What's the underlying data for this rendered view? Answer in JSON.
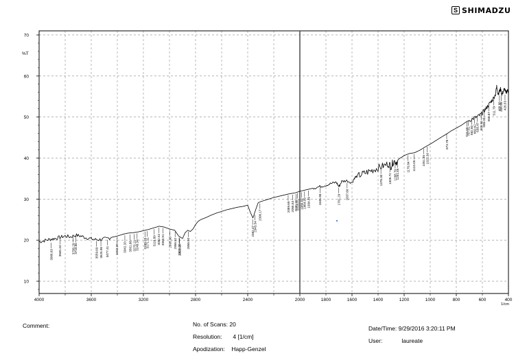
{
  "brand": {
    "name": "SHIMADZU",
    "mark": "S"
  },
  "chart_data": {
    "type": "line",
    "xunit": "1/cm",
    "ylabel": "%T",
    "xlim": [
      4000,
      400
    ],
    "ylim": [
      7,
      71
    ],
    "xticks": [
      4000,
      3600,
      3200,
      2800,
      2400,
      2000,
      1600,
      1200,
      800,
      400
    ],
    "xtick_labels": [
      "4000",
      "3600",
      "3200",
      "2800",
      "2400",
      "2000",
      "1600",
      "1200",
      "800",
      "400"
    ],
    "minor_xticks": [
      3800,
      3400,
      3000,
      2600,
      2200,
      1800,
      1400,
      1000,
      600
    ],
    "minor_xtick_labels": [
      "",
      "",
      "",
      "",
      "",
      "1800",
      "1400",
      "1000",
      "600"
    ],
    "yticks": [
      10,
      20,
      30,
      40,
      50,
      60,
      70
    ],
    "ytick_labels": [
      "10",
      "20",
      "30",
      "40",
      "50",
      "60",
      "70"
    ],
    "grid": true,
    "marker_line_x": 2000,
    "series": [
      {
        "x": [
          4000,
          3960,
          3920,
          3880,
          3840,
          3800,
          3760,
          3720,
          3680,
          3640,
          3600,
          3560,
          3520,
          3480,
          3440,
          3400,
          3360,
          3320,
          3280,
          3240,
          3200,
          3160,
          3120,
          3080,
          3040,
          3000,
          2960,
          2930,
          2900,
          2880,
          2860,
          2840,
          2820,
          2800,
          2780,
          2760,
          2720,
          2680,
          2640,
          2600,
          2560,
          2520,
          2480,
          2440,
          2400,
          2380,
          2360,
          2340,
          2320,
          2300,
          2280,
          2240,
          2200,
          2160,
          2120,
          2080,
          2040,
          2000,
          1960,
          1920,
          1880,
          1840,
          1800,
          1760,
          1720,
          1700,
          1680,
          1640,
          1600,
          1580,
          1560,
          1520,
          1480,
          1440,
          1400,
          1360,
          1320,
          1300,
          1280,
          1260,
          1240,
          1200,
          1160,
          1120,
          1080,
          1040,
          1000,
          960,
          920,
          873,
          840,
          800,
          760,
          720,
          680,
          650,
          620,
          600,
          580,
          560,
          540,
          520,
          500,
          490,
          480,
          470,
          460,
          450,
          440,
          430,
          420,
          410,
          400
        ],
        "y": [
          19.6,
          19.9,
          20.2,
          20.4,
          20.7,
          21.0,
          20.8,
          21.2,
          21.0,
          20.6,
          20.3,
          20.1,
          20.2,
          20.4,
          20.7,
          21.0,
          21.4,
          21.7,
          21.8,
          22.0,
          22.3,
          22.6,
          23.0,
          23.4,
          23.2,
          22.7,
          22.4,
          21.0,
          20.4,
          21.8,
          22.4,
          22.1,
          22.7,
          23.8,
          24.6,
          25.0,
          25.5,
          26.1,
          26.6,
          27.0,
          27.4,
          27.7,
          28.0,
          28.2,
          28.5,
          26.8,
          25.4,
          27.3,
          29.1,
          29.4,
          29.6,
          30.0,
          30.4,
          30.7,
          31.0,
          31.3,
          31.5,
          31.9,
          32.2,
          32.5,
          32.8,
          33.1,
          33.4,
          33.8,
          34.1,
          33.0,
          34.3,
          34.5,
          34.0,
          35.2,
          35.6,
          36.1,
          36.6,
          37.1,
          37.6,
          38.1,
          38.6,
          38.0,
          39.3,
          39.0,
          39.8,
          40.6,
          41.1,
          41.3,
          41.9,
          42.7,
          43.4,
          44.2,
          45.0,
          45.9,
          46.6,
          47.3,
          48.0,
          48.9,
          49.5,
          49.9,
          50.4,
          51.0,
          51.8,
          52.6,
          53.5,
          54.3,
          55.5,
          57.5,
          55.6,
          56.2,
          56.8,
          55.4,
          56.3,
          56.9,
          55.8,
          56.5,
          56.2
        ]
      }
    ],
    "peak_labels": [
      {
        "x": 3906.63,
        "y": 19.7,
        "label": "3906.63"
      },
      {
        "x": 3840.44,
        "y": 20.6,
        "label": "3840.44"
      },
      {
        "x": 3738.29,
        "y": 21.1,
        "label": "3738.29"
      },
      {
        "x": 3718.8,
        "y": 21.2,
        "label": "3718.80"
      },
      {
        "x": 3559.69,
        "y": 20.1,
        "label": "3559.69"
      },
      {
        "x": 3525.98,
        "y": 20.2,
        "label": "3525.98"
      },
      {
        "x": 3477.41,
        "y": 20.4,
        "label": "3477.41"
      },
      {
        "x": 3403.09,
        "y": 21.0,
        "label": "3403.09"
      },
      {
        "x": 3342.33,
        "y": 21.5,
        "label": "3342.33"
      },
      {
        "x": 3301.88,
        "y": 21.7,
        "label": "3301.88"
      },
      {
        "x": 3270.11,
        "y": 21.8,
        "label": "3270.11"
      },
      {
        "x": 3248.34,
        "y": 22.0,
        "label": "3248.34"
      },
      {
        "x": 3188.25,
        "y": 22.4,
        "label": "3188.25"
      },
      {
        "x": 3171.11,
        "y": 22.5,
        "label": "3171.11"
      },
      {
        "x": 3116.89,
        "y": 23.0,
        "label": "3116.89"
      },
      {
        "x": 3082.52,
        "y": 23.4,
        "label": "3082.52"
      },
      {
        "x": 3050.91,
        "y": 23.3,
        "label": "3050.91"
      },
      {
        "x": 2995.9,
        "y": 22.7,
        "label": "2995.90"
      },
      {
        "x": 2956.92,
        "y": 22.4,
        "label": "2956.92"
      },
      {
        "x": 2926.06,
        "y": 21.0,
        "label": "2926.06"
      },
      {
        "x": 2922.18,
        "y": 20.8,
        "label": "2922.18"
      },
      {
        "x": 2856.5,
        "y": 22.4,
        "label": "2856.50"
      },
      {
        "x": 2362.47,
        "y": 25.4,
        "label": "2362.47"
      },
      {
        "x": 2343.54,
        "y": 26.5,
        "label": "2343.54"
      },
      {
        "x": 2306.17,
        "y": 29.3,
        "label": "2306.17"
      },
      {
        "x": 2089.69,
        "y": 31.3,
        "label": "2089.69"
      },
      {
        "x": 2056.53,
        "y": 31.4,
        "label": "2056.53"
      },
      {
        "x": 2030.3,
        "y": 31.6,
        "label": "2030.30"
      },
      {
        "x": 2018.01,
        "y": 31.8,
        "label": "2018.01"
      },
      {
        "x": 1986.69,
        "y": 32.0,
        "label": "1986.69"
      },
      {
        "x": 1964.09,
        "y": 32.2,
        "label": "1964.09"
      },
      {
        "x": 1934.09,
        "y": 32.4,
        "label": "1934.09"
      },
      {
        "x": 1845.98,
        "y": 33.1,
        "label": "1845.98"
      },
      {
        "x": 1701.29,
        "y": 33.1,
        "label": "1701.29"
      },
      {
        "x": 1637.6,
        "y": 34.3,
        "label": "1637.60"
      },
      {
        "x": 1378.3,
        "y": 37.8,
        "label": "1378.30"
      },
      {
        "x": 1309.72,
        "y": 38.2,
        "label": "1309.72"
      },
      {
        "x": 1268.79,
        "y": 39.1,
        "label": "1268.79"
      },
      {
        "x": 1251.55,
        "y": 39.3,
        "label": "1251.55"
      },
      {
        "x": 1170.84,
        "y": 41.0,
        "label": "1170.84"
      },
      {
        "x": 1124.05,
        "y": 41.3,
        "label": "1124.05"
      },
      {
        "x": 1051.35,
        "y": 42.6,
        "label": "1051.35"
      },
      {
        "x": 1022.3,
        "y": 43.1,
        "label": "1022.30"
      },
      {
        "x": 873.78,
        "y": 46.3,
        "label": "873.78"
      },
      {
        "x": 719.49,
        "y": 49.3,
        "label": "719.49"
      },
      {
        "x": 707.61,
        "y": 49.5,
        "label": "707.61"
      },
      {
        "x": 682.6,
        "y": 49.8,
        "label": "682.60"
      },
      {
        "x": 660.62,
        "y": 50.1,
        "label": "660.62"
      },
      {
        "x": 638.47,
        "y": 50.5,
        "label": "638.47"
      },
      {
        "x": 609.56,
        "y": 50.9,
        "label": "609.56"
      },
      {
        "x": 588.03,
        "y": 51.7,
        "label": "588.03"
      },
      {
        "x": 550.67,
        "y": 53.1,
        "label": "550.67"
      },
      {
        "x": 511.79,
        "y": 54.5,
        "label": "511.79"
      },
      {
        "x": 468.88,
        "y": 55.6,
        "label": "468.88"
      },
      {
        "x": 455.95,
        "y": 55.5,
        "label": "455.95"
      },
      {
        "x": 426.53,
        "y": 55.8,
        "label": "426.53"
      }
    ]
  },
  "footer": {
    "comment_label": "Comment:",
    "scans_label": "No. of Scans:",
    "scans_value": "20",
    "resolution_label": "Resolution:",
    "resolution_value": "4 [1/cm]",
    "apodization_label": "Apodization:",
    "apodization_value": "Happ-Genzel",
    "datetime_label": "Date/Time:",
    "datetime_value": "9/29/2016 3:20:11 PM",
    "user_label": "User:",
    "user_value": "laureate"
  }
}
